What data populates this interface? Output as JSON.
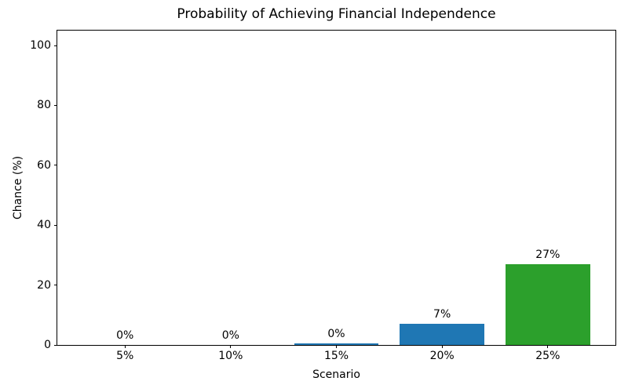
{
  "chart_data": {
    "type": "bar",
    "title": "Probability of Achieving Financial Independence",
    "xlabel": "Scenario",
    "ylabel": "Chance (%)",
    "categories": [
      "5%",
      "10%",
      "15%",
      "20%",
      "25%"
    ],
    "values": [
      0,
      0,
      0.4,
      7,
      27
    ],
    "bar_labels": [
      "0%",
      "0%",
      "0%",
      "7%",
      "27%"
    ],
    "bar_colors": [
      "#1f77b4",
      "#1f77b4",
      "#1f77b4",
      "#1f77b4",
      "#2ca02c"
    ],
    "yticks": [
      0,
      20,
      40,
      60,
      80,
      100
    ],
    "ylim": [
      0,
      105
    ],
    "xlim": [
      -0.64,
      4.64
    ],
    "bar_width": 0.8,
    "grid": false,
    "legend": "none",
    "background_color": "#ffffff",
    "spine_color": "#000000",
    "text_color": "#000000"
  }
}
